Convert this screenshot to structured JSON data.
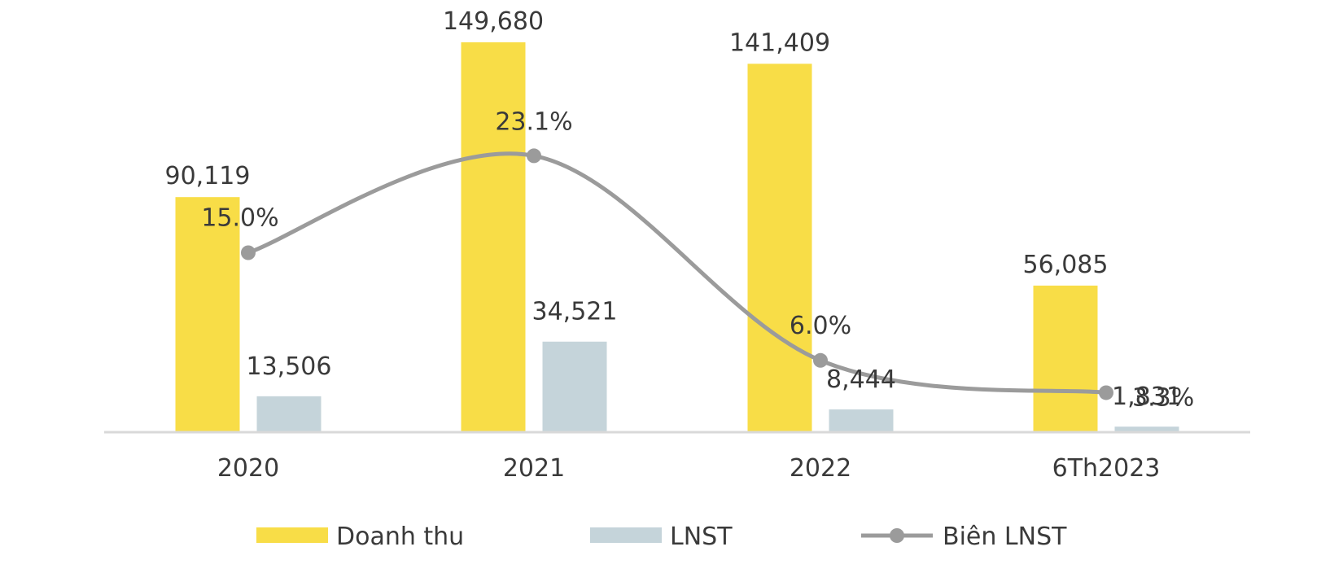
{
  "chart_data": {
    "type": "bar",
    "categories": [
      "2020",
      "2021",
      "2022",
      "6Th2023"
    ],
    "series": [
      {
        "name": "Doanh thu",
        "type": "bar",
        "color": "#F8DD47",
        "values": [
          90119,
          149680,
          141409,
          56085
        ],
        "labels": [
          "90,119",
          "149,680",
          "141,409",
          "56,085"
        ]
      },
      {
        "name": "LNST",
        "type": "bar",
        "color": "#C5D4DA",
        "values": [
          13506,
          34521,
          8444,
          1831
        ],
        "labels": [
          "13,506",
          "34,521",
          "8,444",
          "1,831"
        ]
      },
      {
        "name": "Biên LNST",
        "type": "line",
        "color": "#9B9B9B",
        "values": [
          15.0,
          23.1,
          6.0,
          3.3
        ],
        "labels": [
          "15.0%",
          "23.1%",
          "6.0%",
          "3.3%"
        ]
      }
    ],
    "ylim": [
      0,
      160000
    ],
    "legend_position": "bottom",
    "grid": false,
    "axis_color": "#D9D9D9"
  }
}
